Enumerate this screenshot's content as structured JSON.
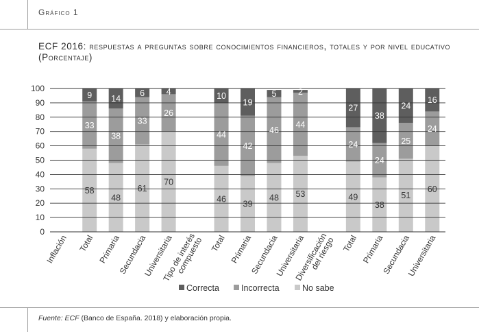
{
  "header": {
    "label": "Gráfico 1"
  },
  "title": {
    "lead": "ECF 2016",
    "rest": ": respuestas a preguntas sobre conocimientos financieros, totales y por nivel educativo (Porcentaje)"
  },
  "source": {
    "prefix": "Fuente:",
    "ecf": "ECF",
    "rest": " (Banco de España. 2018) y elaboración propia."
  },
  "colors": {
    "correcta": "#5e5e5e",
    "incorrecta": "#9c9c9c",
    "no_sabe": "#c9c9c9",
    "grid": "#333333"
  },
  "chart_data": {
    "type": "bar",
    "stacked": true,
    "ylim": [
      0,
      100
    ],
    "yticks": [
      0,
      10,
      20,
      30,
      40,
      50,
      60,
      70,
      80,
      90,
      100
    ],
    "grid": true,
    "legend_position": "bottom",
    "categories": [
      "Inflación",
      "Total",
      "Primaria",
      "Secundacia",
      "Universitaria",
      "Tipo de interés compuesto",
      "Total",
      "Primaria",
      "Secundacia",
      "Universitaria",
      "Diversificación del riesgo",
      "Total",
      "Primaria",
      "Secundacia",
      "Universitaria"
    ],
    "series": [
      {
        "name": "No sabe",
        "values": [
          null,
          58,
          48,
          61,
          70,
          null,
          46,
          39,
          48,
          53,
          null,
          49,
          38,
          51,
          60
        ]
      },
      {
        "name": "Incorrecta",
        "values": [
          null,
          33,
          38,
          33,
          26,
          null,
          44,
          42,
          46,
          44,
          null,
          24,
          24,
          25,
          24
        ]
      },
      {
        "name": "Correcta",
        "values": [
          null,
          9,
          14,
          6,
          4,
          null,
          10,
          19,
          5,
          2,
          null,
          27,
          38,
          24,
          16
        ]
      }
    ]
  }
}
